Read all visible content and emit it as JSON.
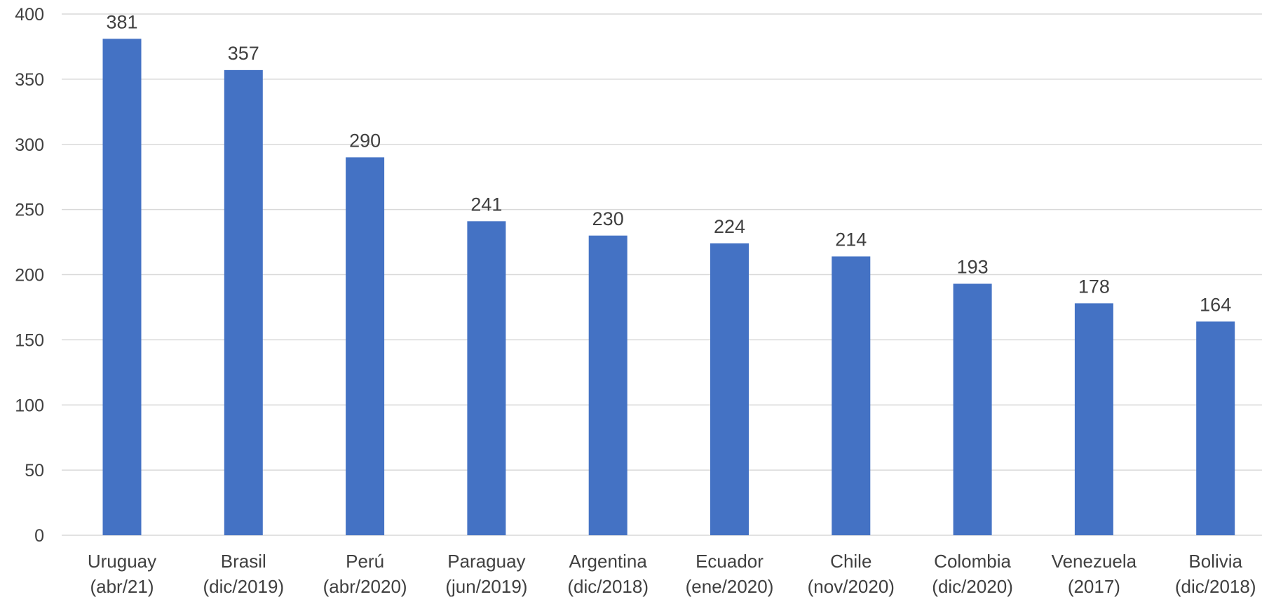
{
  "chart_data": {
    "type": "bar",
    "categories": [
      [
        "Uruguay",
        "(abr/21)"
      ],
      [
        "Brasil",
        "(dic/2019)"
      ],
      [
        "Perú",
        "(abr/2020)"
      ],
      [
        "Paraguay",
        "(jun/2019)"
      ],
      [
        "Argentina",
        "(dic/2018)"
      ],
      [
        "Ecuador",
        "(ene/2020)"
      ],
      [
        "Chile",
        "(nov/2020)"
      ],
      [
        "Colombia",
        "(dic/2020)"
      ],
      [
        "Venezuela",
        "(2017)"
      ],
      [
        "Bolivia",
        "(dic/2018)"
      ]
    ],
    "values": [
      381,
      357,
      290,
      241,
      230,
      224,
      214,
      193,
      178,
      164
    ],
    "ylim": [
      0,
      400
    ],
    "yticks": [
      0,
      50,
      100,
      150,
      200,
      250,
      300,
      350,
      400
    ],
    "grid": true,
    "bar_color": "#4472C4",
    "gridline_color": "#D9D9D9",
    "text_color": "#404040"
  }
}
